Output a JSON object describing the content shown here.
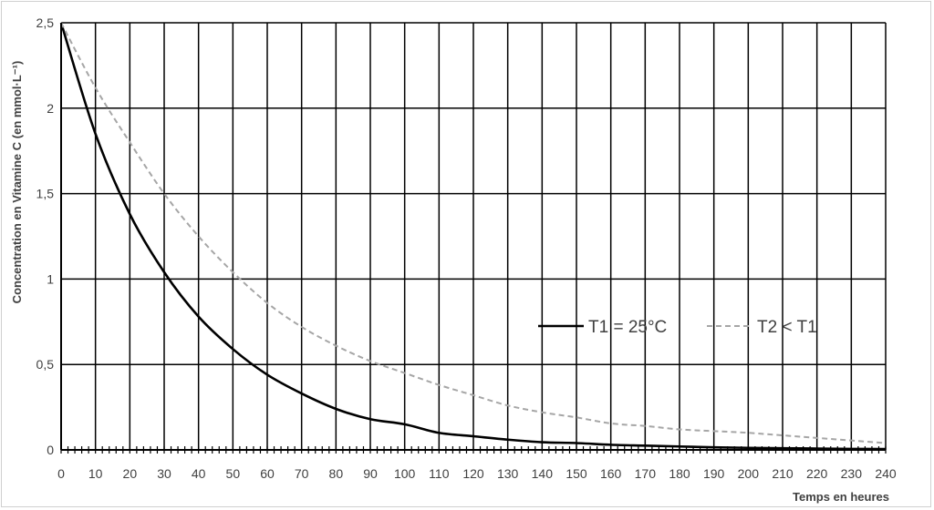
{
  "chart_data": {
    "type": "line",
    "title": "",
    "xlabel": "Temps en heures",
    "ylabel": "Concentration en Vitamine C (en mmol·L⁻¹)",
    "xlim": [
      0,
      240
    ],
    "ylim": [
      0,
      2.5
    ],
    "x_ticks": [
      "0",
      "10",
      "20",
      "30",
      "40",
      "50",
      "60",
      "70",
      "80",
      "90",
      "100",
      "110",
      "120",
      "130",
      "140",
      "150",
      "160",
      "170",
      "180",
      "190",
      "200",
      "210",
      "220",
      "230",
      "240"
    ],
    "y_ticks": [
      "0",
      "0,5",
      "1",
      "1,5",
      "2",
      "2,5"
    ],
    "grid": true,
    "legend_position": "right-middle",
    "series": [
      {
        "name": "T1 = 25°C",
        "color": "#000000",
        "style": "solid",
        "x": [
          0,
          10,
          20,
          30,
          40,
          50,
          60,
          70,
          80,
          90,
          100,
          110,
          120,
          130,
          140,
          150,
          160,
          170,
          180,
          190,
          200,
          210,
          220,
          230,
          240
        ],
        "y": [
          2.5,
          1.85,
          1.38,
          1.04,
          0.78,
          0.59,
          0.44,
          0.33,
          0.24,
          0.18,
          0.15,
          0.1,
          0.08,
          0.06,
          0.045,
          0.04,
          0.03,
          0.025,
          0.02,
          0.015,
          0.012,
          0.01,
          0.008,
          0.006,
          0.005
        ]
      },
      {
        "name": "T2 < T1",
        "color": "#a6a6a6",
        "style": "dashed",
        "x": [
          0,
          10,
          20,
          30,
          40,
          50,
          60,
          70,
          80,
          90,
          100,
          110,
          120,
          130,
          140,
          150,
          160,
          170,
          180,
          190,
          200,
          210,
          220,
          230,
          240
        ],
        "y": [
          2.5,
          2.12,
          1.8,
          1.5,
          1.25,
          1.04,
          0.86,
          0.72,
          0.61,
          0.52,
          0.45,
          0.38,
          0.32,
          0.26,
          0.22,
          0.19,
          0.155,
          0.14,
          0.12,
          0.11,
          0.1,
          0.085,
          0.07,
          0.055,
          0.04
        ]
      }
    ]
  }
}
